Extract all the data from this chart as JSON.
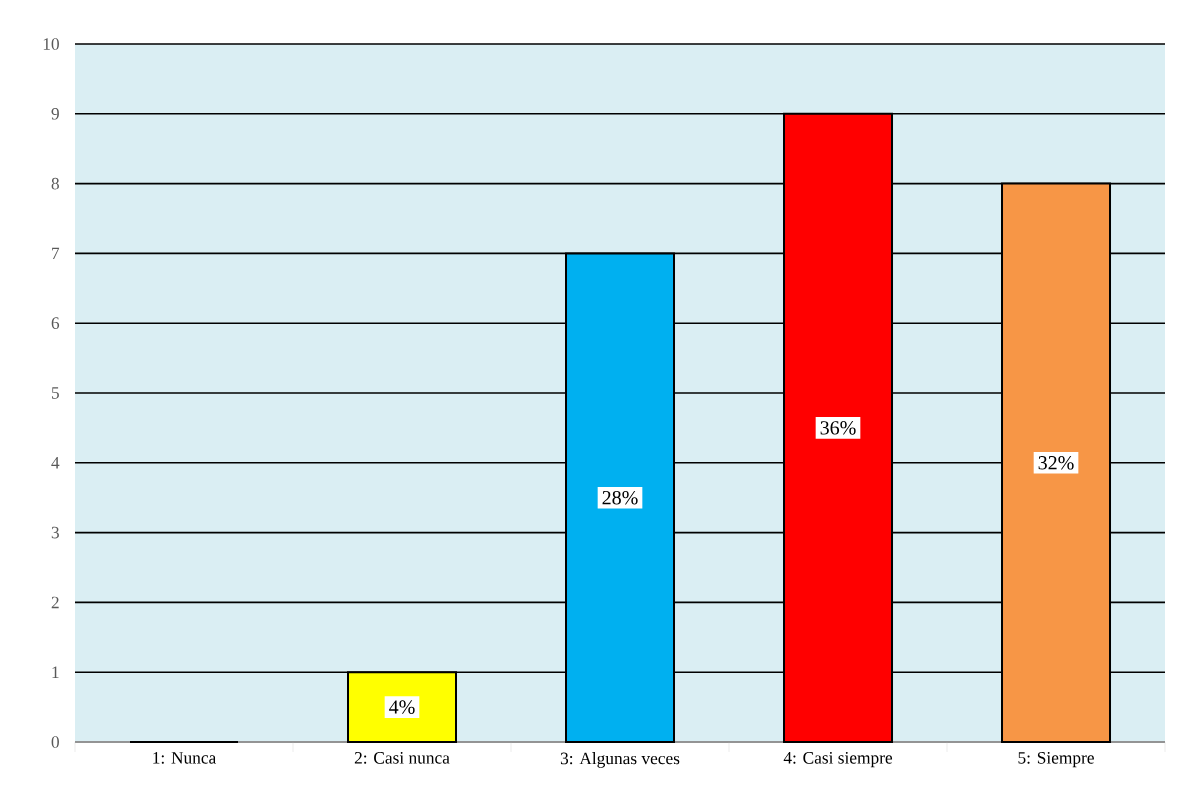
{
  "chart_data": {
    "type": "bar",
    "categories": [
      "1: Nunca",
      "2: Casi nunca",
      "3: Algunas veces",
      "4: Casi siempre",
      "5: Siempre"
    ],
    "values": [
      0,
      1,
      7,
      9,
      8
    ],
    "colors": [
      "#ffff00",
      "#ffff00",
      "#00b0f0",
      "#ff0000",
      "#f79646"
    ],
    "annotations": [
      "4%",
      "28%",
      "36%",
      "32%"
    ],
    "ylim": [
      0,
      10
    ],
    "yticks": [
      0,
      1,
      2,
      3,
      4,
      5,
      6,
      7,
      8,
      9,
      10
    ],
    "grid": "y"
  }
}
